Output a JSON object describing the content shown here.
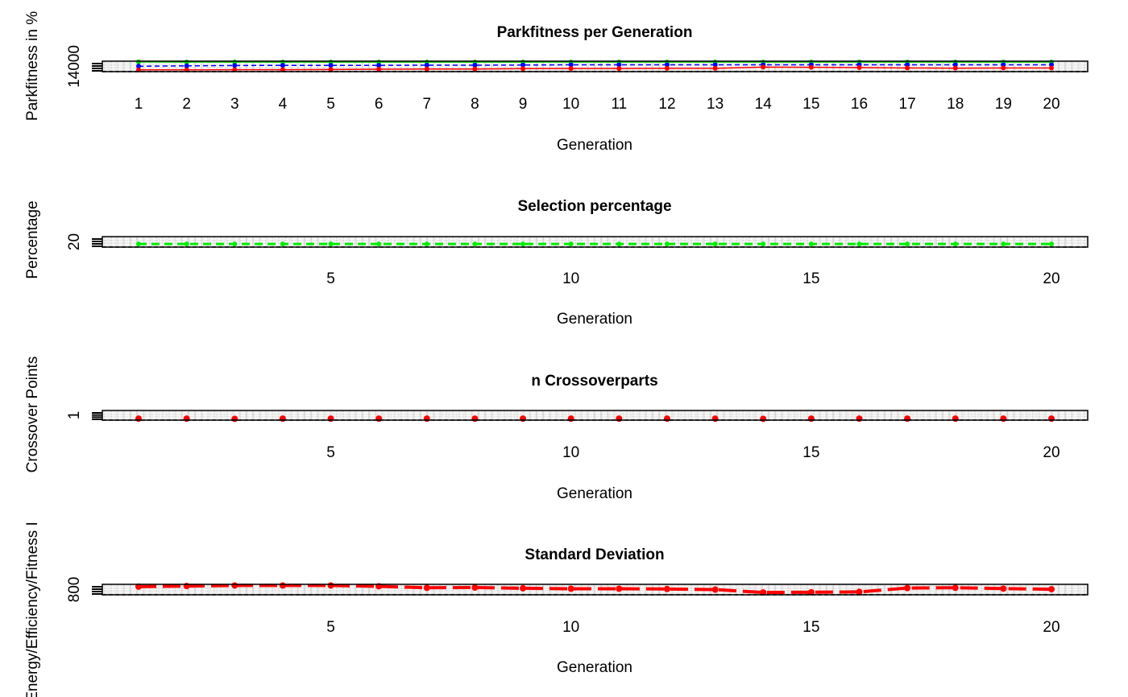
{
  "chart_data": [
    {
      "type": "line",
      "title": "Parkfitness per Generation",
      "xlabel": "Generation",
      "ylabel": "Parkfitness in %",
      "x_ticks": [
        "1",
        "2",
        "3",
        "4",
        "5",
        "6",
        "7",
        "8",
        "9",
        "10",
        "11",
        "12",
        "13",
        "14",
        "15",
        "16",
        "17",
        "18",
        "19",
        "20"
      ],
      "y_ticks": [
        "14000"
      ],
      "xlim": [
        0.1,
        20.8
      ],
      "ylim": [
        13750,
        14350
      ],
      "grid": true,
      "x": [
        1,
        2,
        3,
        4,
        5,
        6,
        7,
        8,
        9,
        10,
        11,
        12,
        13,
        14,
        15,
        16,
        17,
        18,
        19,
        20
      ],
      "series": [
        {
          "color": "#00cc00",
          "style": "solid",
          "values": [
            14310,
            14300,
            14300,
            14300,
            14300,
            14300,
            14300,
            14300,
            14300,
            14300,
            14300,
            14300,
            14300,
            14300,
            14300,
            14300,
            14300,
            14300,
            14300,
            14300
          ]
        },
        {
          "color": "#0000ff",
          "style": "dashed",
          "values": [
            14060,
            14080,
            14100,
            14110,
            14110,
            14110,
            14120,
            14120,
            14130,
            14140,
            14140,
            14140,
            14140,
            14140,
            14140,
            14140,
            14140,
            14140,
            14140,
            14140
          ]
        },
        {
          "color": "#ff0000",
          "style": "solid",
          "values": [
            13850,
            13850,
            13860,
            13860,
            13870,
            13890,
            13900,
            13900,
            13920,
            13930,
            13930,
            13940,
            13940,
            14010,
            14000,
            13980,
            13960,
            13950,
            13960,
            13960
          ]
        }
      ]
    },
    {
      "type": "line",
      "title": "Selection percentage",
      "xlabel": "Generation",
      "ylabel": "Percentage",
      "x_ticks": [
        "5",
        "10",
        "15",
        "20"
      ],
      "y_ticks": [
        "20"
      ],
      "xlim": [
        0.1,
        20.8
      ],
      "ylim": [
        18.5,
        23.5
      ],
      "grid": true,
      "x": [
        1,
        2,
        3,
        4,
        5,
        6,
        7,
        8,
        9,
        10,
        11,
        12,
        13,
        14,
        15,
        16,
        17,
        18,
        19,
        20
      ],
      "series": [
        {
          "color": "#00ee00",
          "style": "dotted",
          "values": [
            20,
            20,
            20,
            20,
            20,
            20,
            20,
            20,
            20,
            20,
            20,
            20,
            20,
            20,
            20,
            20,
            20,
            20,
            20,
            20
          ]
        }
      ]
    },
    {
      "type": "line",
      "title": "n Crossoverparts",
      "xlabel": "Generation",
      "ylabel": "Crossover Points",
      "x_ticks": [
        "5",
        "10",
        "15",
        "20"
      ],
      "y_ticks": [
        "1"
      ],
      "xlim": [
        0.1,
        20.8
      ],
      "ylim": [
        0.5,
        5
      ],
      "grid": true,
      "x": [
        1,
        2,
        3,
        4,
        5,
        6,
        7,
        8,
        9,
        10,
        11,
        12,
        13,
        14,
        15,
        16,
        17,
        18,
        19,
        20
      ],
      "series": [
        {
          "color": "#ff0000",
          "style": "points",
          "values": [
            1.2,
            1.2,
            1.1,
            1.2,
            1.2,
            1.2,
            1.2,
            1.2,
            1.2,
            1.2,
            1.2,
            1.2,
            1.2,
            1.1,
            1.2,
            1.2,
            1.2,
            1.2,
            1.2,
            1.2
          ]
        }
      ]
    },
    {
      "type": "line",
      "title": "Standard Deviation",
      "xlabel": "Generation",
      "ylabel": "Energy/Efficiency/Fitness I",
      "x_ticks": [
        "5",
        "10",
        "15",
        "20"
      ],
      "y_ticks": [
        "800"
      ],
      "xlim": [
        0.1,
        20.8
      ],
      "ylim": [
        770,
        860
      ],
      "grid": true,
      "x": [
        1,
        2,
        3,
        4,
        5,
        6,
        7,
        8,
        9,
        10,
        11,
        12,
        13,
        14,
        15,
        16,
        17,
        18,
        19,
        20
      ],
      "series": [
        {
          "color": "#ff0000",
          "style": "dashed",
          "values": [
            840,
            845,
            850,
            850,
            850,
            843,
            830,
            832,
            826,
            822,
            822,
            820,
            815,
            790,
            792,
            795,
            828,
            830,
            823,
            818
          ]
        }
      ]
    }
  ]
}
